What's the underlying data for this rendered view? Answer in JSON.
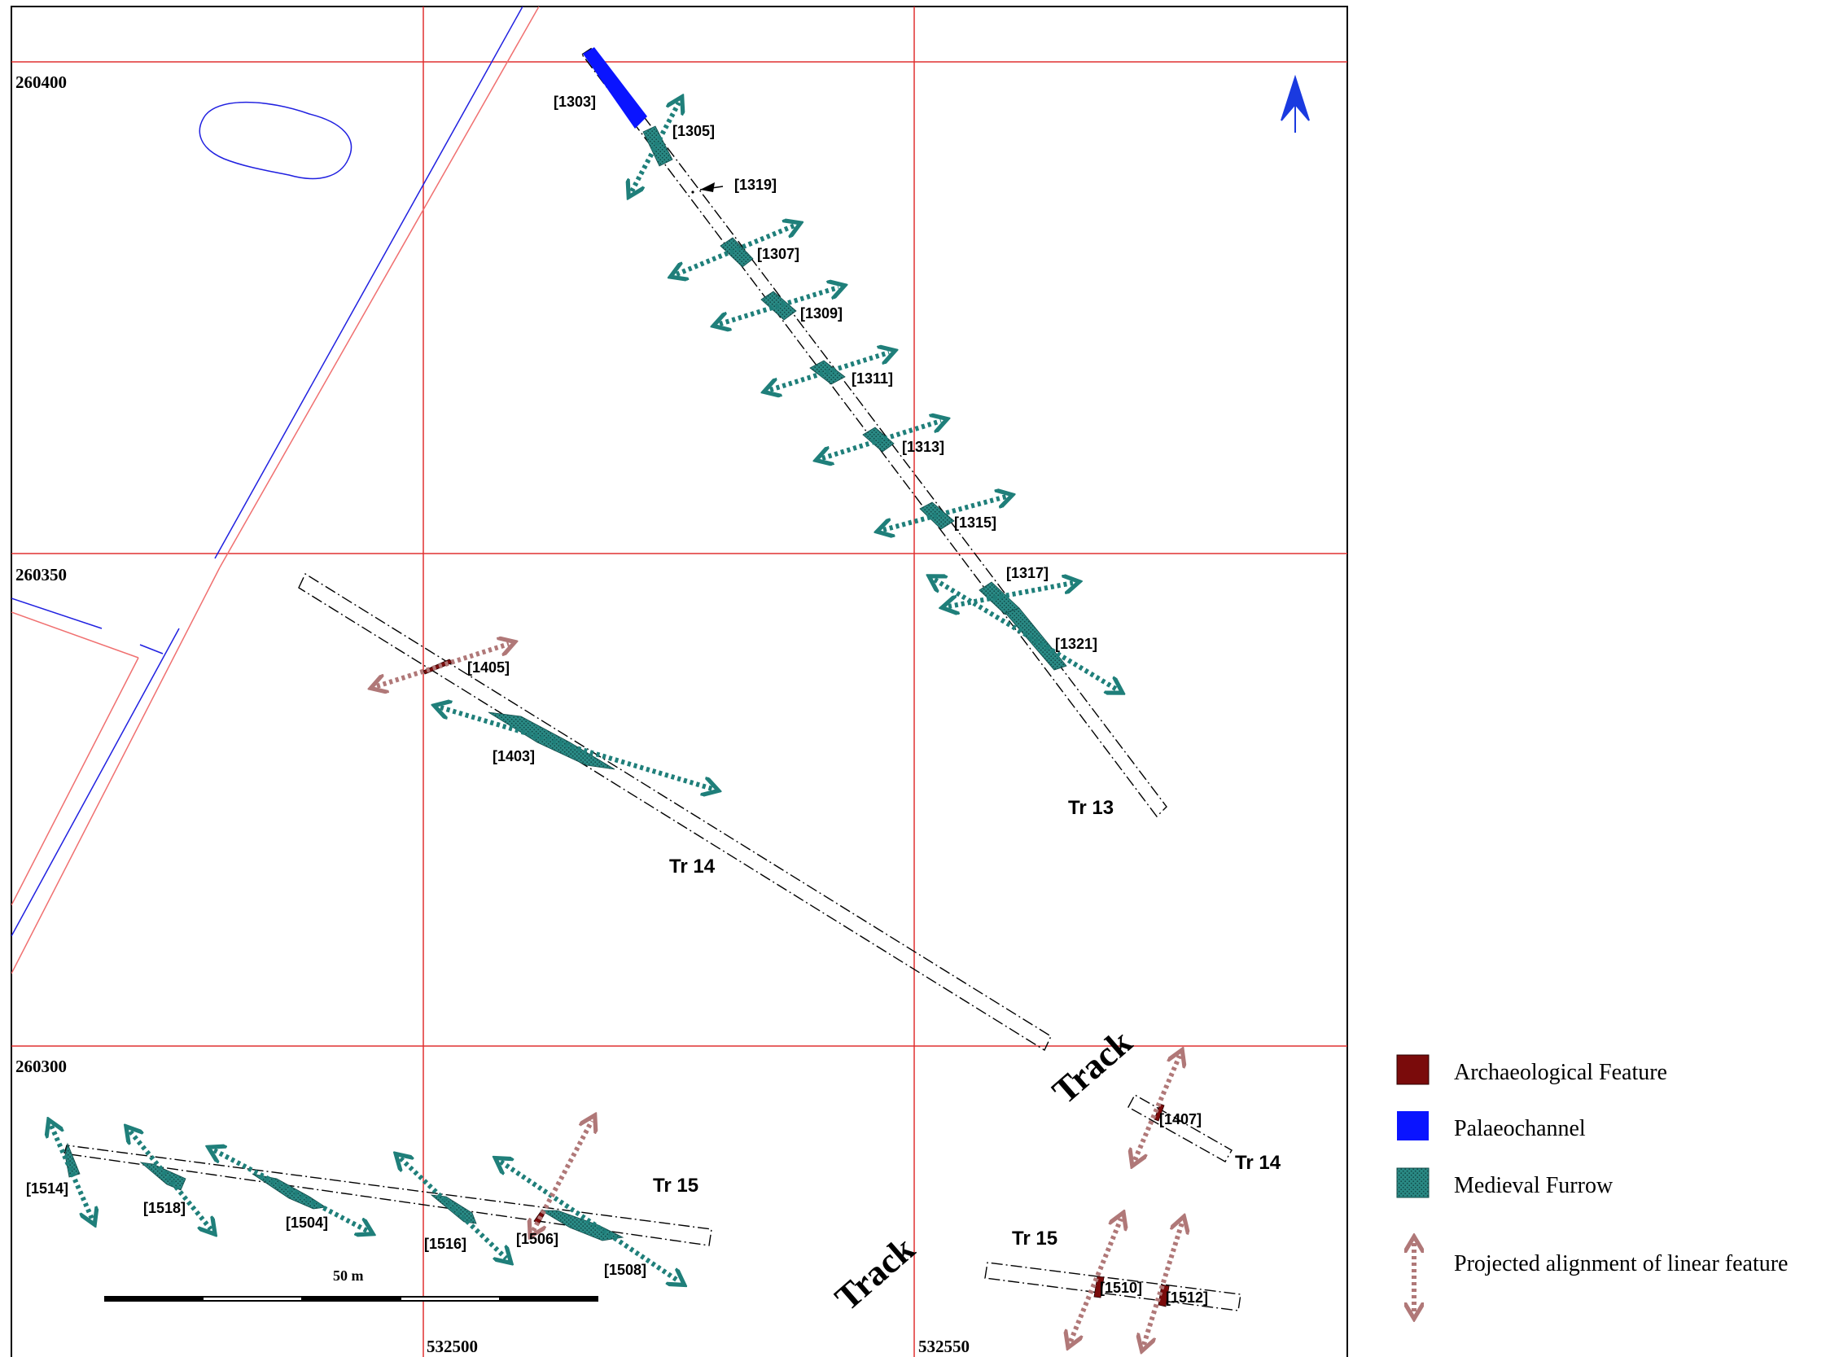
{
  "map": {
    "grid_labels": {
      "northing_60400": "260400",
      "northing_60350": "260350",
      "northing_60300": "260300",
      "easting_32500": "532500",
      "easting_32550": "532550"
    },
    "scale_bar": {
      "label": "50 m"
    },
    "trenches": {
      "tr13": "Tr 13",
      "tr14": "Tr 14",
      "tr14b": "Tr 14",
      "tr15": "Tr 15",
      "tr15b": "Tr 15"
    },
    "track_labels": {
      "track_a": "Track",
      "track_b": "Track"
    },
    "features": {
      "f1303": "[1303]",
      "f1305": "[1305]",
      "f1319": "[1319]",
      "f1307": "[1307]",
      "f1309": "[1309]",
      "f1311": "[1311]",
      "f1313": "[1313]",
      "f1315": "[1315]",
      "f1317": "[1317]",
      "f1321": "[1321]",
      "f1405": "[1405]",
      "f1403": "[1403]",
      "f1407": "[1407]",
      "f1514": "[1514]",
      "f1518": "[1518]",
      "f1504": "[1504]",
      "f1516": "[1516]",
      "f1506": "[1506]",
      "f1508": "[1508]",
      "f1510": "[1510]",
      "f1512": "[1512]"
    },
    "colors": {
      "grid": "#e03030",
      "boundary_blue": "#2020e0",
      "boundary_red": "#f07070",
      "archaeological_feature": "#7a0b0b",
      "palaeochannel": "#0a14ff",
      "medieval_furrow": "#1f7f7a",
      "projected_alignment": "#b07878",
      "north_arrow": "#1a3ae0"
    },
    "icons": {
      "north": "north-arrow-icon"
    }
  },
  "legend": {
    "items": [
      {
        "label": "Archaeological Feature",
        "swatch": "archaeological_feature"
      },
      {
        "label": "Palaeochannel",
        "swatch": "palaeochannel"
      },
      {
        "label": "Medieval Furrow",
        "swatch": "medieval_furrow"
      },
      {
        "label": "Projected alignment of linear feature",
        "swatch": "projected_alignment"
      }
    ]
  }
}
